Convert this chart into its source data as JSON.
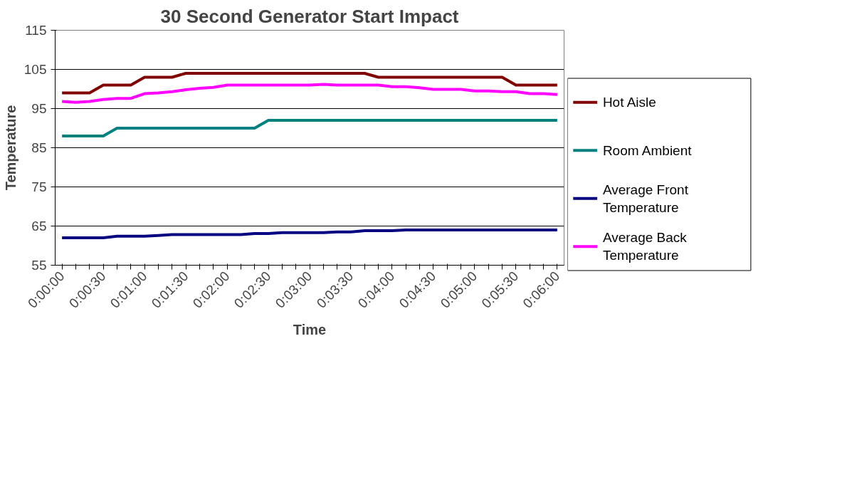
{
  "chart_data": {
    "type": "line",
    "title": "30 Second Generator Start Impact",
    "xlabel": "Time",
    "ylabel": "Temperature",
    "categories": [
      "0:00:00",
      null,
      null,
      "0:00:30",
      null,
      null,
      "0:01:00",
      null,
      null,
      "0:01:30",
      null,
      null,
      "0:02:00",
      null,
      null,
      "0:02:30",
      null,
      null,
      "0:03:00",
      null,
      null,
      "0:03:30",
      null,
      null,
      "0:04:00",
      null,
      null,
      "0:04:30",
      null,
      null,
      "0:05:00",
      null,
      null,
      "0:05:30",
      null,
      null,
      "0:06:00"
    ],
    "series": [
      {
        "name": "Hot Aisle",
        "color": "#800000",
        "values": [
          99,
          99,
          99,
          101,
          101,
          101,
          103,
          103,
          103,
          104,
          104,
          104,
          104,
          104,
          104,
          104,
          104,
          104,
          104,
          104,
          104,
          104,
          104,
          103,
          103,
          103,
          103,
          103,
          103,
          103,
          103,
          103,
          103,
          101,
          101,
          101,
          101
        ]
      },
      {
        "name": "Room Ambient",
        "color": "#008080",
        "values": [
          88,
          88,
          88,
          88,
          90,
          90,
          90,
          90,
          90,
          90,
          90,
          90,
          90,
          90,
          90,
          92,
          92,
          92,
          92,
          92,
          92,
          92,
          92,
          92,
          92,
          92,
          92,
          92,
          92,
          92,
          92,
          92,
          92,
          92,
          92,
          92,
          92
        ]
      },
      {
        "name": "Average Front Temperature",
        "color": "#000080",
        "values": [
          62,
          62,
          62,
          62,
          62.4,
          62.4,
          62.4,
          62.6,
          62.8,
          62.8,
          62.8,
          62.8,
          62.8,
          62.8,
          63.1,
          63.1,
          63.3,
          63.3,
          63.3,
          63.3,
          63.5,
          63.5,
          63.8,
          63.8,
          63.8,
          64,
          64,
          64,
          64,
          64,
          64,
          64,
          64,
          64,
          64,
          64,
          64
        ]
      },
      {
        "name": "Average Back Temperature",
        "color": "#ff00ff",
        "values": [
          96.8,
          96.6,
          96.8,
          97.3,
          97.6,
          97.6,
          98.8,
          99,
          99.3,
          99.8,
          100.2,
          100.4,
          101,
          101,
          101,
          101,
          101,
          101,
          101,
          101.2,
          101,
          101,
          101,
          101,
          100.6,
          100.6,
          100.3,
          99.9,
          99.9,
          99.9,
          99.5,
          99.5,
          99.3,
          99.3,
          98.8,
          98.8,
          98.6
        ]
      }
    ],
    "ylim": [
      55,
      115
    ],
    "yticks": [
      55,
      65,
      75,
      85,
      95,
      105,
      115
    ],
    "grid": "y",
    "legend": "right",
    "marker": "none",
    "line_style": "solid"
  }
}
